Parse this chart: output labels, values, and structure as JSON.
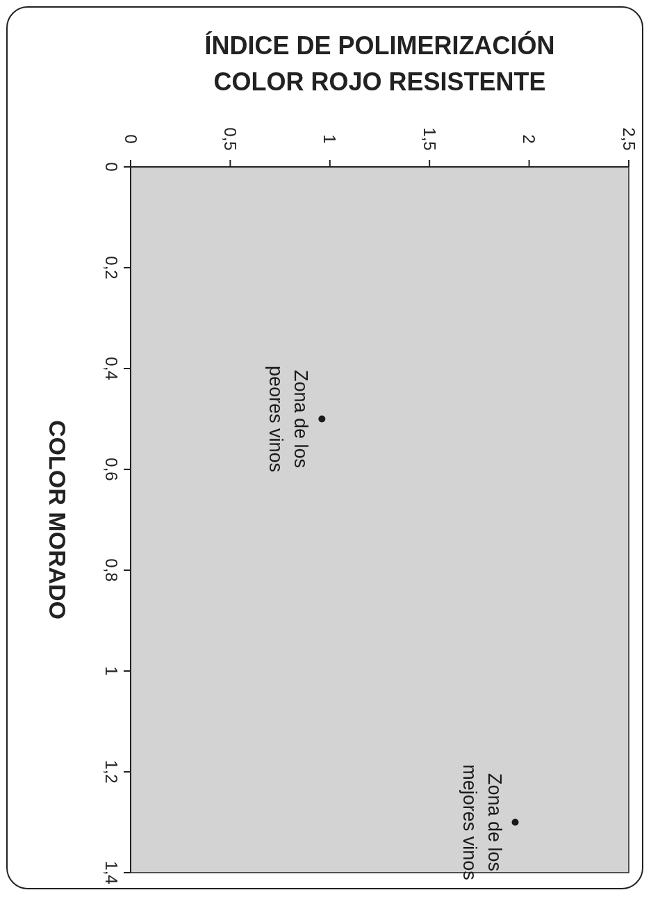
{
  "chart_data": {
    "type": "scatter",
    "xlabel": "ÍNDICE DE POLIMERIZACIÓN\nCOLOR ROJO RESISTENTE",
    "ylabel": "COLOR MORADO",
    "x": [
      0.96,
      1.93
    ],
    "values": [
      0.5,
      1.3
    ],
    "color": "#1a1a1a",
    "marker": "circle",
    "xlim": [
      0,
      2.5
    ],
    "xticks": [
      0,
      {
        "value": 0.5,
        "label": "0,5"
      },
      1,
      {
        "value": 1.5,
        "label": "1,5"
      },
      2,
      {
        "value": 2.5,
        "label": "2,5"
      }
    ],
    "ylim": [
      1.4,
      0
    ],
    "yticks": [
      0,
      {
        "value": 0.2,
        "label": "0,2"
      },
      {
        "value": 0.4,
        "label": "0,4"
      },
      {
        "value": 0.6,
        "label": "0,6"
      },
      {
        "value": 0.8,
        "label": "0,8"
      },
      1,
      {
        "value": 1.2,
        "label": "1,2"
      },
      {
        "value": 1.4,
        "label": "1,4"
      }
    ],
    "annotations": [
      {
        "text": "Zona de los peores vinos",
        "x": 0.96,
        "y": 0.5
      },
      {
        "text": "Zona de los mejores vinos",
        "x": 1.93,
        "y": 1.3
      }
    ]
  }
}
